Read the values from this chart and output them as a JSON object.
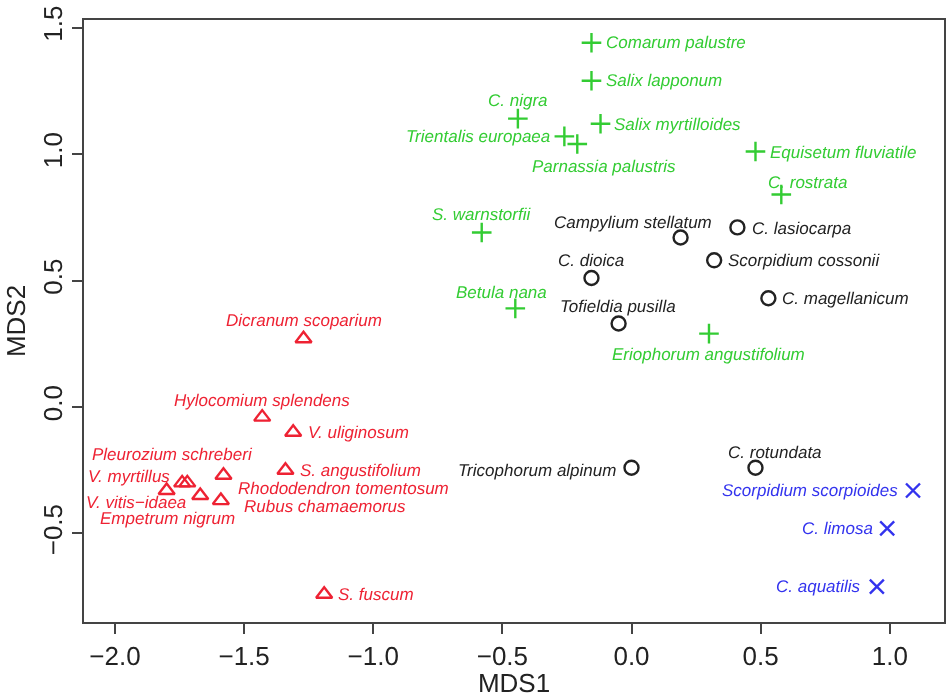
{
  "chart_data": {
    "type": "scatter",
    "xlabel": "MDS1",
    "ylabel": "MDS2",
    "xlim": [
      -2.12,
      1.21
    ],
    "ylim": [
      -0.85,
      1.53
    ],
    "xticks": [
      {
        "value": -2,
        "label": "−2.0"
      },
      -1.5,
      {
        "value": -1,
        "label": "−1.0"
      },
      -0.5,
      {
        "value": 0,
        "label": "0.0"
      },
      0.5,
      {
        "value": 1,
        "label": "1.0"
      }
    ],
    "yticks": [
      -0.5,
      {
        "value": 0,
        "label": "0.0"
      },
      0.5,
      {
        "value": 1,
        "label": "1.0"
      },
      1.5
    ],
    "grid": false,
    "series": [
      {
        "color": "#33cc33",
        "marker": "cross",
        "x": [
          -0.155,
          -0.155,
          -0.44,
          -0.12,
          -0.26,
          -0.21,
          0.48,
          0.58,
          -0.58,
          -0.45,
          0.3
        ],
        "values": [
          1.44,
          1.29,
          1.14,
          1.12,
          1.07,
          1.04,
          1.01,
          0.84,
          0.69,
          0.39,
          0.29
        ],
        "value_labels": [
          "Comarum palustre",
          "Salix lapponum",
          "C. nigra",
          "Salix myrtilloides",
          "Trientalis europaea",
          "Parnassia palustris",
          "Equisetum fluviatile",
          "C. rostrata",
          "S. warnstorfii",
          "Betula nana",
          "Eriophorum angustifolium"
        ]
      },
      {
        "color": "#222222",
        "marker": "circle",
        "x": [
          0.19,
          0.41,
          -0.155,
          0.32,
          0.53,
          -0.05,
          0.0,
          0.48
        ],
        "values": [
          0.67,
          0.71,
          0.51,
          0.58,
          0.43,
          0.33,
          -0.24,
          -0.24
        ],
        "value_labels": [
          "Campylium stellatum",
          "C. lasiocarpa",
          "C. dioica",
          "Scorpidium cossonii",
          "C. magellanicum",
          "Tofieldia pusilla",
          "Tricophorum alpinum",
          "C. rotundata"
        ]
      },
      {
        "color": "#3333ee",
        "marker": "x",
        "x": [
          1.09,
          0.99,
          0.95
        ],
        "values": [
          -0.33,
          -0.48,
          -0.71
        ],
        "value_labels": [
          "Scorpidium scorpioides",
          "C. limosa",
          "C. aquatilis"
        ]
      },
      {
        "color": "#ee2233",
        "marker": "triangle",
        "x": [
          -1.27,
          -1.43,
          -1.31,
          -1.34,
          -1.58,
          -1.72,
          -1.74,
          -1.8,
          -1.67,
          -1.59,
          -1.19
        ],
        "values": [
          0.27,
          -0.04,
          -0.1,
          -0.25,
          -0.27,
          -0.3,
          -0.3,
          -0.33,
          -0.35,
          -0.37,
          -0.74
        ],
        "value_labels": [
          "Dicranum scoparium",
          "Hylocomium splendens",
          "V. uliginosum",
          "S. angustifolium",
          "Rhododendron tomentosum",
          "Pleurozium schreberi",
          "V. myrtillus",
          "V. vitis−idaea",
          "Empetrum nigrum",
          "Rubus chamaemorus",
          "S. fuscum"
        ]
      }
    ]
  }
}
